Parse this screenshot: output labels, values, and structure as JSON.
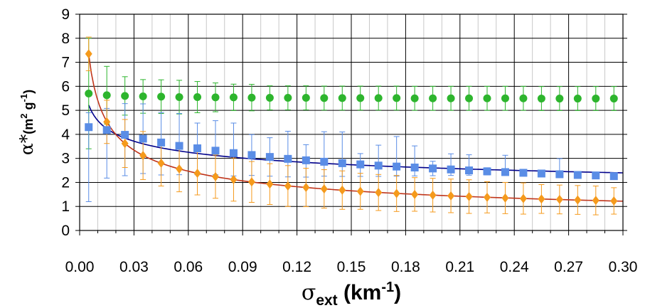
{
  "chart_data": {
    "type": "scatter",
    "xlabel": {
      "symbol": "σ",
      "sub": "ext",
      "unit": " (km",
      "exp": "-1",
      "close": ")"
    },
    "ylabel": {
      "symbol": "α*",
      "unit": "(m",
      "exp1": "2",
      "mid": " g",
      "exp2": "-1",
      "close": ")"
    },
    "xlim": [
      0,
      0.3
    ],
    "ylim": [
      0,
      9
    ],
    "x_ticks": [
      "0.00",
      "0.03",
      "0.06",
      "0.09",
      "0.12",
      "0.15",
      "0.18",
      "0.21",
      "0.24",
      "0.27",
      "0.30"
    ],
    "y_ticks": [
      "0",
      "1",
      "2",
      "3",
      "4",
      "5",
      "6",
      "7",
      "8",
      "9"
    ],
    "grid": true,
    "x": [
      0.005,
      0.015,
      0.025,
      0.035,
      0.045,
      0.055,
      0.065,
      0.075,
      0.085,
      0.095,
      0.105,
      0.115,
      0.125,
      0.135,
      0.145,
      0.155,
      0.165,
      0.175,
      0.185,
      0.195,
      0.205,
      0.215,
      0.225,
      0.235,
      0.245,
      0.255,
      0.265,
      0.275,
      0.285,
      0.295
    ],
    "series": [
      {
        "color": "#2db52d",
        "marker": "circle",
        "values": [
          5.7,
          5.63,
          5.6,
          5.58,
          5.57,
          5.55,
          5.55,
          5.54,
          5.54,
          5.53,
          5.52,
          5.52,
          5.52,
          5.51,
          5.51,
          5.51,
          5.51,
          5.51,
          5.5,
          5.5,
          5.5,
          5.5,
          5.5,
          5.5,
          5.5,
          5.49,
          5.49,
          5.49,
          5.49,
          5.49
        ],
        "err_low": [
          2.3,
          1.2,
          0.8,
          0.7,
          0.7,
          0.7,
          0.65,
          0.6,
          0.55,
          0.55,
          0.5,
          0.5,
          0.5,
          0.5,
          0.5,
          0.5,
          0.5,
          0.5,
          0.5,
          0.5,
          0.5,
          0.5,
          0.5,
          0.5,
          0.5,
          0.5,
          0.5,
          0.5,
          0.5,
          0.5
        ],
        "err_high": [
          2.3,
          1.2,
          0.8,
          0.7,
          0.7,
          0.7,
          0.65,
          0.6,
          0.55,
          0.55,
          0.5,
          0.5,
          0.5,
          0.5,
          0.5,
          0.5,
          0.5,
          0.5,
          0.5,
          0.5,
          0.5,
          0.5,
          0.5,
          0.5,
          0.5,
          0.5,
          0.5,
          0.5,
          0.5,
          0.5
        ]
      },
      {
        "color": "#5a8de6",
        "marker": "square",
        "line_color": "#00008b",
        "values": [
          4.3,
          4.18,
          3.98,
          3.82,
          3.66,
          3.52,
          3.42,
          3.32,
          3.22,
          3.14,
          3.06,
          2.98,
          2.92,
          2.86,
          2.8,
          2.75,
          2.7,
          2.66,
          2.62,
          2.58,
          2.54,
          2.5,
          2.46,
          2.43,
          2.4,
          2.37,
          2.34,
          2.31,
          2.29,
          2.26
        ],
        "err_low": [
          3.1,
          2.0,
          1.7,
          1.45,
          1.35,
          1.2,
          1.1,
          1.0,
          0.95,
          0.85,
          0.8,
          0.75,
          0.7,
          0.6,
          0.55,
          0.5,
          0.45,
          0.4,
          0.35,
          0.3,
          0.25,
          0.2,
          0.15,
          0.12,
          0.1,
          0.08,
          0.07,
          0.06,
          0.05,
          0.05
        ],
        "err_high": [
          0.6,
          0.9,
          1.3,
          1.45,
          1.25,
          1.35,
          1.05,
          1.25,
          1.25,
          0.85,
          0.8,
          1.15,
          0.65,
          1.25,
          1.3,
          0.45,
          0.85,
          1.25,
          0.9,
          0.3,
          0.65,
          0.65,
          0.15,
          0.7,
          0.1,
          0.08,
          0.65,
          0.06,
          0.05,
          0.05
        ]
      },
      {
        "color": "#f59a1c",
        "marker": "diamond",
        "line_color": "#c0351b",
        "values": [
          7.35,
          4.52,
          3.62,
          3.12,
          2.8,
          2.56,
          2.38,
          2.24,
          2.12,
          2.02,
          1.93,
          1.85,
          1.79,
          1.73,
          1.68,
          1.63,
          1.58,
          1.54,
          1.5,
          1.47,
          1.44,
          1.41,
          1.38,
          1.35,
          1.33,
          1.31,
          1.29,
          1.27,
          1.25,
          1.23
        ],
        "err_low": [
          0.7,
          0.9,
          1.0,
          1.0,
          0.95,
          0.95,
          0.9,
          0.9,
          0.9,
          0.85,
          0.85,
          0.85,
          0.8,
          0.8,
          0.8,
          0.75,
          0.75,
          0.75,
          0.7,
          0.7,
          0.7,
          0.7,
          0.65,
          0.65,
          0.65,
          0.6,
          0.6,
          0.6,
          0.6,
          0.55
        ],
        "err_high": [
          0.7,
          0.9,
          1.0,
          1.0,
          0.95,
          0.95,
          0.9,
          0.9,
          0.9,
          0.85,
          0.85,
          0.85,
          0.8,
          0.8,
          0.8,
          0.75,
          0.75,
          0.75,
          0.7,
          0.7,
          0.7,
          0.7,
          0.65,
          0.65,
          0.65,
          0.6,
          0.6,
          0.6,
          0.6,
          0.55
        ]
      }
    ]
  }
}
